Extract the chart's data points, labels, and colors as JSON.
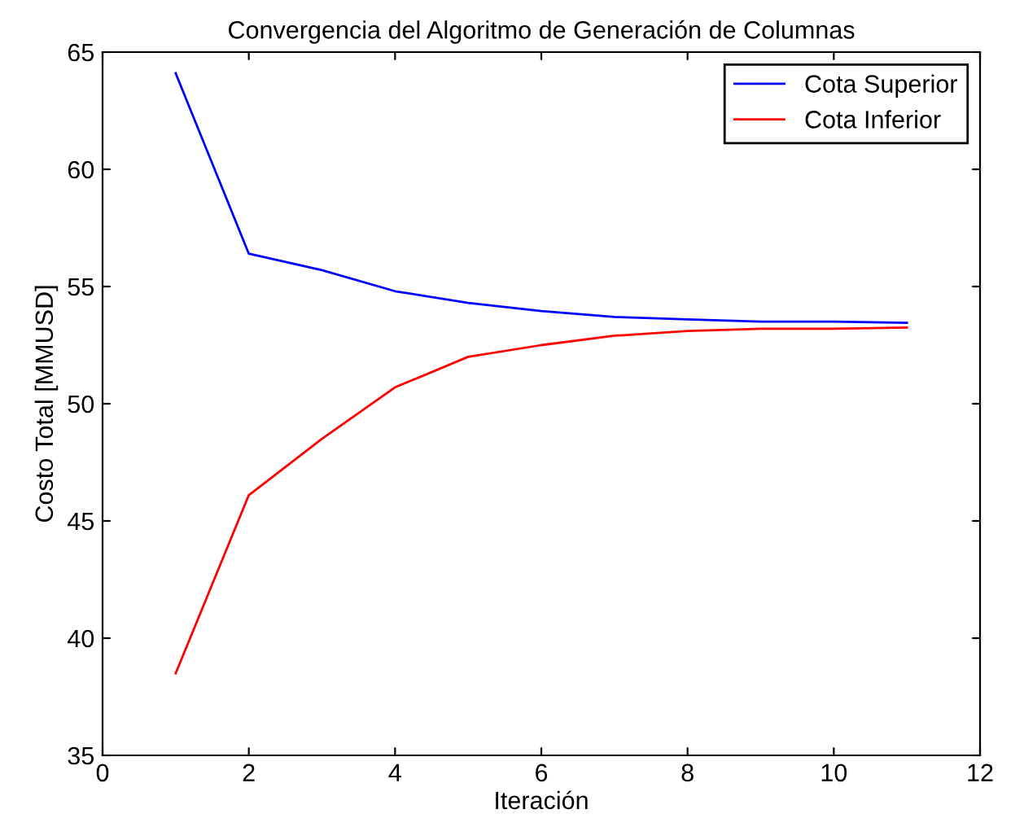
{
  "chart_data": {
    "type": "line",
    "title": "Convergencia del Algoritmo de Generación de Columnas",
    "xlabel": "Iteración",
    "ylabel": "Costo Total [MMUSD]",
    "x": [
      1,
      2,
      3,
      4,
      5,
      6,
      7,
      8,
      9,
      10,
      11
    ],
    "series": [
      {
        "name": "Cota Superior",
        "color": "#0000ff",
        "values": [
          64.1,
          56.4,
          55.7,
          54.8,
          54.3,
          53.95,
          53.7,
          53.6,
          53.5,
          53.5,
          53.45
        ]
      },
      {
        "name": "Cota Inferior",
        "color": "#ff0000",
        "values": [
          38.5,
          46.1,
          48.5,
          50.7,
          52.0,
          52.5,
          52.9,
          53.1,
          53.2,
          53.2,
          53.25
        ]
      }
    ],
    "xlim": [
      0,
      12
    ],
    "xticks": [
      0,
      2,
      4,
      6,
      8,
      10,
      12
    ],
    "ylim": [
      35,
      65
    ],
    "yticks": [
      35,
      40,
      45,
      50,
      55,
      60,
      65
    ],
    "grid": false,
    "legend": "top right",
    "marker": "none",
    "line_style": "solid"
  }
}
